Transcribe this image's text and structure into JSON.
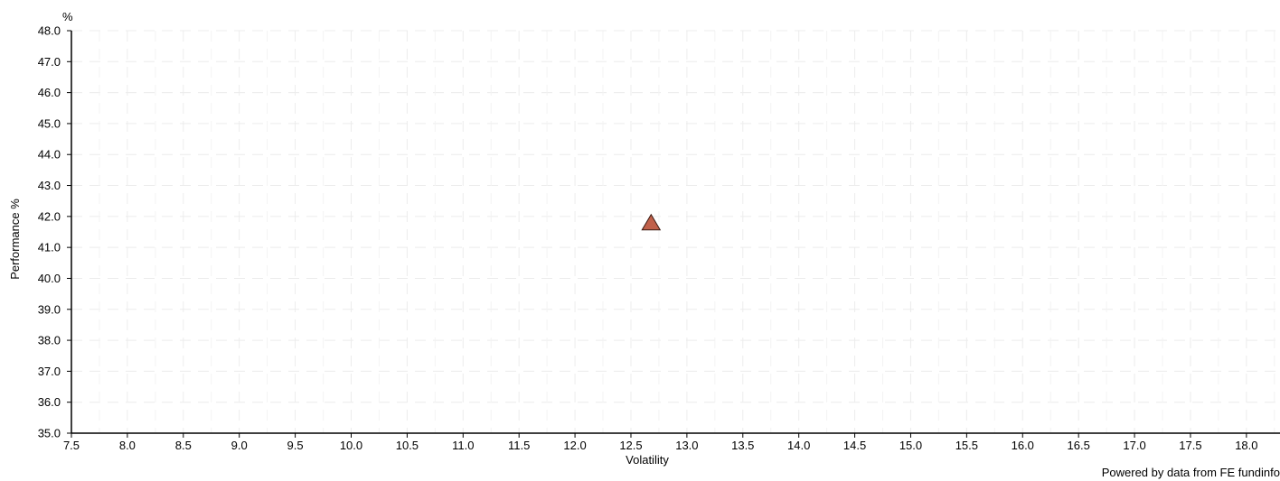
{
  "chart_data": {
    "type": "scatter",
    "title": "",
    "xlabel": "Volatility",
    "ylabel": "Performance %",
    "y_unit": "%",
    "xlim": [
      7.5,
      18.3
    ],
    "ylim": [
      35.0,
      48.0
    ],
    "x_ticks": [
      "7.5",
      "8.0",
      "8.5",
      "9.0",
      "9.5",
      "10.0",
      "10.5",
      "11.0",
      "11.5",
      "12.0",
      "12.5",
      "13.0",
      "13.5",
      "14.0",
      "14.5",
      "15.0",
      "15.5",
      "16.0",
      "16.5",
      "17.0",
      "17.5",
      "18.0"
    ],
    "y_ticks": [
      "35.0",
      "36.0",
      "37.0",
      "38.0",
      "39.0",
      "40.0",
      "41.0",
      "42.0",
      "43.0",
      "44.0",
      "45.0",
      "46.0",
      "47.0",
      "48.0"
    ],
    "grid": true,
    "legend": "none",
    "series": [
      {
        "marker": "triangle",
        "color": "#c0604a",
        "points": [
          {
            "x": 12.68,
            "y": 41.8
          }
        ]
      }
    ]
  },
  "footer": {
    "credit": "Powered by data from FE fundinfo"
  }
}
